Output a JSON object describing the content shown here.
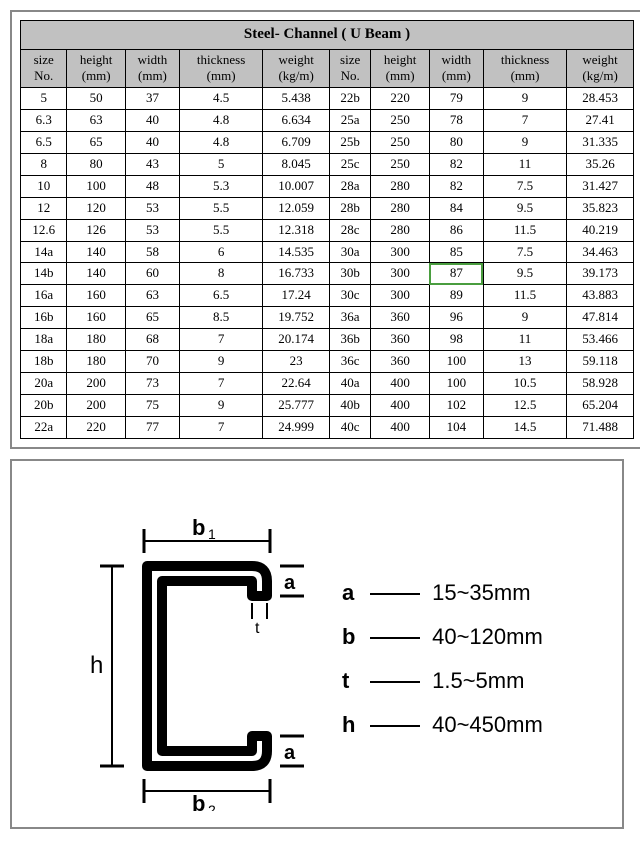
{
  "title": "Steel- Channel ( U Beam )",
  "headers": [
    "size\nNo.",
    "height\n(mm)",
    "width\n(mm)",
    "thickness\n(mm)",
    "weight\n(kg/m)",
    "size\nNo.",
    "height\n(mm)",
    "width\n(mm)",
    "thickness\n(mm)",
    "weight\n(kg/m)"
  ],
  "rows": [
    [
      "5",
      "50",
      "37",
      "4.5",
      "5.438",
      "22b",
      "220",
      "79",
      "9",
      "28.453"
    ],
    [
      "6.3",
      "63",
      "40",
      "4.8",
      "6.634",
      "25a",
      "250",
      "78",
      "7",
      "27.41"
    ],
    [
      "6.5",
      "65",
      "40",
      "4.8",
      "6.709",
      "25b",
      "250",
      "80",
      "9",
      "31.335"
    ],
    [
      "8",
      "80",
      "43",
      "5",
      "8.045",
      "25c",
      "250",
      "82",
      "11",
      "35.26"
    ],
    [
      "10",
      "100",
      "48",
      "5.3",
      "10.007",
      "28a",
      "280",
      "82",
      "7.5",
      "31.427"
    ],
    [
      "12",
      "120",
      "53",
      "5.5",
      "12.059",
      "28b",
      "280",
      "84",
      "9.5",
      "35.823"
    ],
    [
      "12.6",
      "126",
      "53",
      "5.5",
      "12.318",
      "28c",
      "280",
      "86",
      "11.5",
      "40.219"
    ],
    [
      "14a",
      "140",
      "58",
      "6",
      "14.535",
      "30a",
      "300",
      "85",
      "7.5",
      "34.463"
    ],
    [
      "14b",
      "140",
      "60",
      "8",
      "16.733",
      "30b",
      "300",
      "87",
      "9.5",
      "39.173"
    ],
    [
      "16a",
      "160",
      "63",
      "6.5",
      "17.24",
      "30c",
      "300",
      "89",
      "11.5",
      "43.883"
    ],
    [
      "16b",
      "160",
      "65",
      "8.5",
      "19.752",
      "36a",
      "360",
      "96",
      "9",
      "47.814"
    ],
    [
      "18a",
      "180",
      "68",
      "7",
      "20.174",
      "36b",
      "360",
      "98",
      "11",
      "53.466"
    ],
    [
      "18b",
      "180",
      "70",
      "9",
      "23",
      "36c",
      "360",
      "100",
      "13",
      "59.118"
    ],
    [
      "20a",
      "200",
      "73",
      "7",
      "22.64",
      "40a",
      "400",
      "100",
      "10.5",
      "58.928"
    ],
    [
      "20b",
      "200",
      "75",
      "9",
      "25.777",
      "40b",
      "400",
      "102",
      "12.5",
      "65.204"
    ],
    [
      "22a",
      "220",
      "77",
      "7",
      "24.999",
      "40c",
      "400",
      "104",
      "14.5",
      "71.488"
    ]
  ],
  "highlight": {
    "row": 8,
    "col": 7
  },
  "diagram": {
    "labels": {
      "b1": "b1",
      "b2": "b2",
      "a": "a",
      "h": "h",
      "t": "t"
    },
    "legend": [
      {
        "k": "a",
        "v": "15~35mm"
      },
      {
        "k": "b",
        "v": "40~120mm"
      },
      {
        "k": "t",
        "v": "1.5~5mm"
      },
      {
        "k": "h",
        "v": "40~450mm"
      }
    ],
    "colors": {
      "stroke": "#000000",
      "fill": "none"
    }
  }
}
